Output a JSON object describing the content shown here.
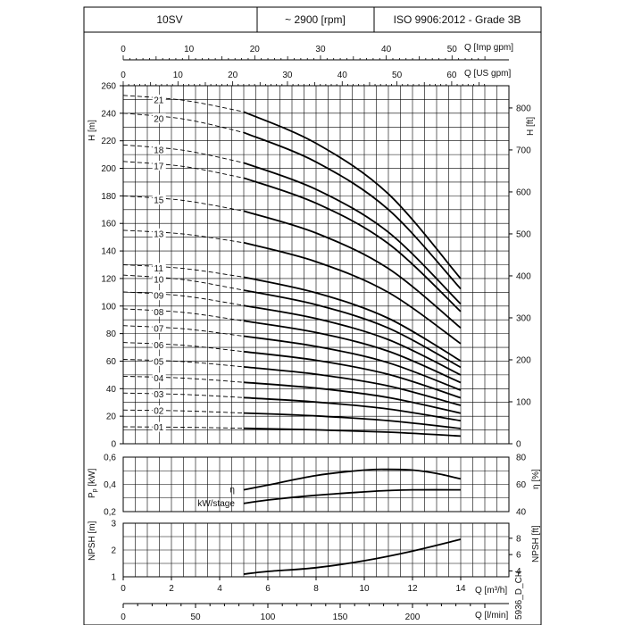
{
  "header": {
    "model": "10SV",
    "speed": "~ 2900 [rpm]",
    "standard": "ISO 9906:2012 - Grade 3B"
  },
  "axes": {
    "imp_gpm_label": "Q [Imp gpm]",
    "imp_gpm_ticks": [
      "0",
      "10",
      "20",
      "30",
      "40",
      "50"
    ],
    "us_gpm_label": "Q [US gpm]",
    "us_gpm_ticks": [
      "0",
      "10",
      "20",
      "30",
      "40",
      "50",
      "60"
    ],
    "h_m_label": "H [m]",
    "h_ft_label": "H [ft]",
    "h_m_ticks": [
      "0",
      "20",
      "40",
      "60",
      "80",
      "100",
      "120",
      "140",
      "160",
      "180",
      "200",
      "220",
      "240",
      "260"
    ],
    "h_ft_ticks": [
      "0",
      "100",
      "200",
      "300",
      "400",
      "500",
      "600",
      "700",
      "800"
    ],
    "p_label": "P [kW]",
    "p_label_sub": "p",
    "p_ticks": [
      "0,2",
      "0,4",
      "0,6"
    ],
    "eta_label": "η [%]",
    "eta_ticks": [
      "40",
      "60",
      "80"
    ],
    "npsh_m_label": "NPSH [m]",
    "npsh_m_ticks": [
      "1",
      "2",
      "3"
    ],
    "npsh_ft_label": "NPSH [ft]",
    "npsh_ft_ticks": [
      "4",
      "6",
      "8"
    ],
    "q_m3h_label": "Q [m³/h]",
    "q_m3h_ticks": [
      "0",
      "2",
      "4",
      "6",
      "8",
      "10",
      "12",
      "14"
    ],
    "q_lmin_label": "Q [l/min]",
    "q_lmin_ticks": [
      "0",
      "50",
      "100",
      "150",
      "200"
    ],
    "doc_code": "5936_D_CH"
  },
  "chart_data": [
    {
      "type": "line",
      "title": "",
      "xlabel": "Q [m³/h]",
      "ylabel": "H [m]",
      "xlim": [
        0,
        14
      ],
      "ylim": [
        0,
        260
      ],
      "operating_range": [
        5,
        14
      ],
      "series": [
        {
          "name": "01",
          "shutoff": 12.3,
          "x": [
            0,
            5,
            8,
            11,
            14
          ],
          "y": [
            12.3,
            11.2,
            10.1,
            8.4,
            5.6
          ]
        },
        {
          "name": "02",
          "shutoff": 24.5,
          "x": [
            0,
            5,
            8,
            11,
            14
          ],
          "y": [
            24.5,
            22.3,
            20.2,
            16.8,
            11.1
          ]
        },
        {
          "name": "03",
          "shutoff": 36.8,
          "x": [
            0,
            5,
            8,
            11,
            14
          ],
          "y": [
            36.8,
            33.5,
            30.3,
            25.2,
            16.7
          ]
        },
        {
          "name": "04",
          "shutoff": 49.0,
          "x": [
            0,
            5,
            8,
            11,
            14
          ],
          "y": [
            49.0,
            44.6,
            40.4,
            33.6,
            22.2
          ]
        },
        {
          "name": "05",
          "shutoff": 61.3,
          "x": [
            0,
            5,
            8,
            11,
            14
          ],
          "y": [
            61.3,
            55.8,
            50.5,
            42.0,
            27.8
          ]
        },
        {
          "name": "06",
          "shutoff": 73.5,
          "x": [
            0,
            5,
            8,
            11,
            14
          ],
          "y": [
            73.5,
            66.9,
            60.6,
            50.4,
            33.3
          ]
        },
        {
          "name": "07",
          "shutoff": 85.8,
          "x": [
            0,
            5,
            8,
            11,
            14
          ],
          "y": [
            85.8,
            78.1,
            70.7,
            58.8,
            38.9
          ]
        },
        {
          "name": "08",
          "shutoff": 98.0,
          "x": [
            0,
            5,
            8,
            11,
            14
          ],
          "y": [
            98.0,
            89.2,
            80.8,
            67.2,
            44.4
          ]
        },
        {
          "name": "09",
          "shutoff": 110.3,
          "x": [
            0,
            5,
            8,
            11,
            14
          ],
          "y": [
            110.3,
            100.4,
            90.9,
            75.6,
            50.0
          ]
        },
        {
          "name": "10",
          "shutoff": 122.5,
          "x": [
            0,
            5,
            8,
            11,
            14
          ],
          "y": [
            122.5,
            111.5,
            101.0,
            84.0,
            55.5
          ]
        },
        {
          "name": "11",
          "shutoff": 130.0,
          "x": [
            0,
            5,
            8,
            11,
            14
          ],
          "y": [
            130.0,
            121.0,
            109.6,
            91.1,
            60.2
          ]
        },
        {
          "name": "13",
          "shutoff": 155.0,
          "x": [
            0,
            5,
            8,
            11,
            14
          ],
          "y": [
            155.0,
            146.0,
            132.2,
            109.9,
            72.7
          ]
        },
        {
          "name": "15",
          "shutoff": 180.0,
          "x": [
            0,
            5,
            8,
            11,
            14
          ],
          "y": [
            180.0,
            169.0,
            153.0,
            127.2,
            84.1
          ]
        },
        {
          "name": "17",
          "shutoff": 205.0,
          "x": [
            0,
            5,
            8,
            11,
            14
          ],
          "y": [
            205.0,
            193.0,
            174.7,
            145.3,
            96.0
          ]
        },
        {
          "name": "18",
          "shutoff": 217.0,
          "x": [
            0,
            5,
            8,
            11,
            14
          ],
          "y": [
            217.0,
            204.0,
            184.7,
            153.6,
            101.5
          ]
        },
        {
          "name": "20",
          "shutoff": 240.0,
          "x": [
            0,
            5,
            8,
            11,
            14
          ],
          "y": [
            240.0,
            226.0,
            204.6,
            170.1,
            112.5
          ]
        },
        {
          "name": "21",
          "shutoff": 253.0,
          "x": [
            0,
            5,
            8,
            11,
            14
          ],
          "y": [
            253.0,
            241.0,
            218.2,
            181.4,
            119.9
          ]
        }
      ]
    },
    {
      "type": "line",
      "title": "",
      "xlabel": "Q [m³/h]",
      "ylabel": "P [kW]",
      "xlim": [
        0,
        14
      ],
      "ylim": [
        0.2,
        0.6
      ],
      "y2label": "η [%]",
      "y2lim": [
        40,
        80
      ],
      "series": [
        {
          "name": "η",
          "axis": "right",
          "x": [
            5,
            6,
            8,
            10,
            11,
            12,
            13,
            14
          ],
          "y": [
            56,
            59.5,
            66.5,
            70.5,
            71,
            70.5,
            68,
            64
          ]
        },
        {
          "name": "kW/stage",
          "axis": "left",
          "x": [
            5,
            6,
            8,
            10,
            11,
            12,
            14
          ],
          "y": [
            0.26,
            0.285,
            0.32,
            0.345,
            0.355,
            0.36,
            0.36
          ]
        }
      ]
    },
    {
      "type": "line",
      "title": "",
      "xlabel": "Q [m³/h]",
      "ylabel": "NPSH [m]",
      "xlim": [
        0,
        14
      ],
      "ylim": [
        1,
        3
      ],
      "series": [
        {
          "name": "",
          "x": [
            5,
            6,
            8,
            10,
            12,
            14
          ],
          "y": [
            1.1,
            1.2,
            1.34,
            1.6,
            1.96,
            2.4
          ]
        }
      ]
    }
  ]
}
